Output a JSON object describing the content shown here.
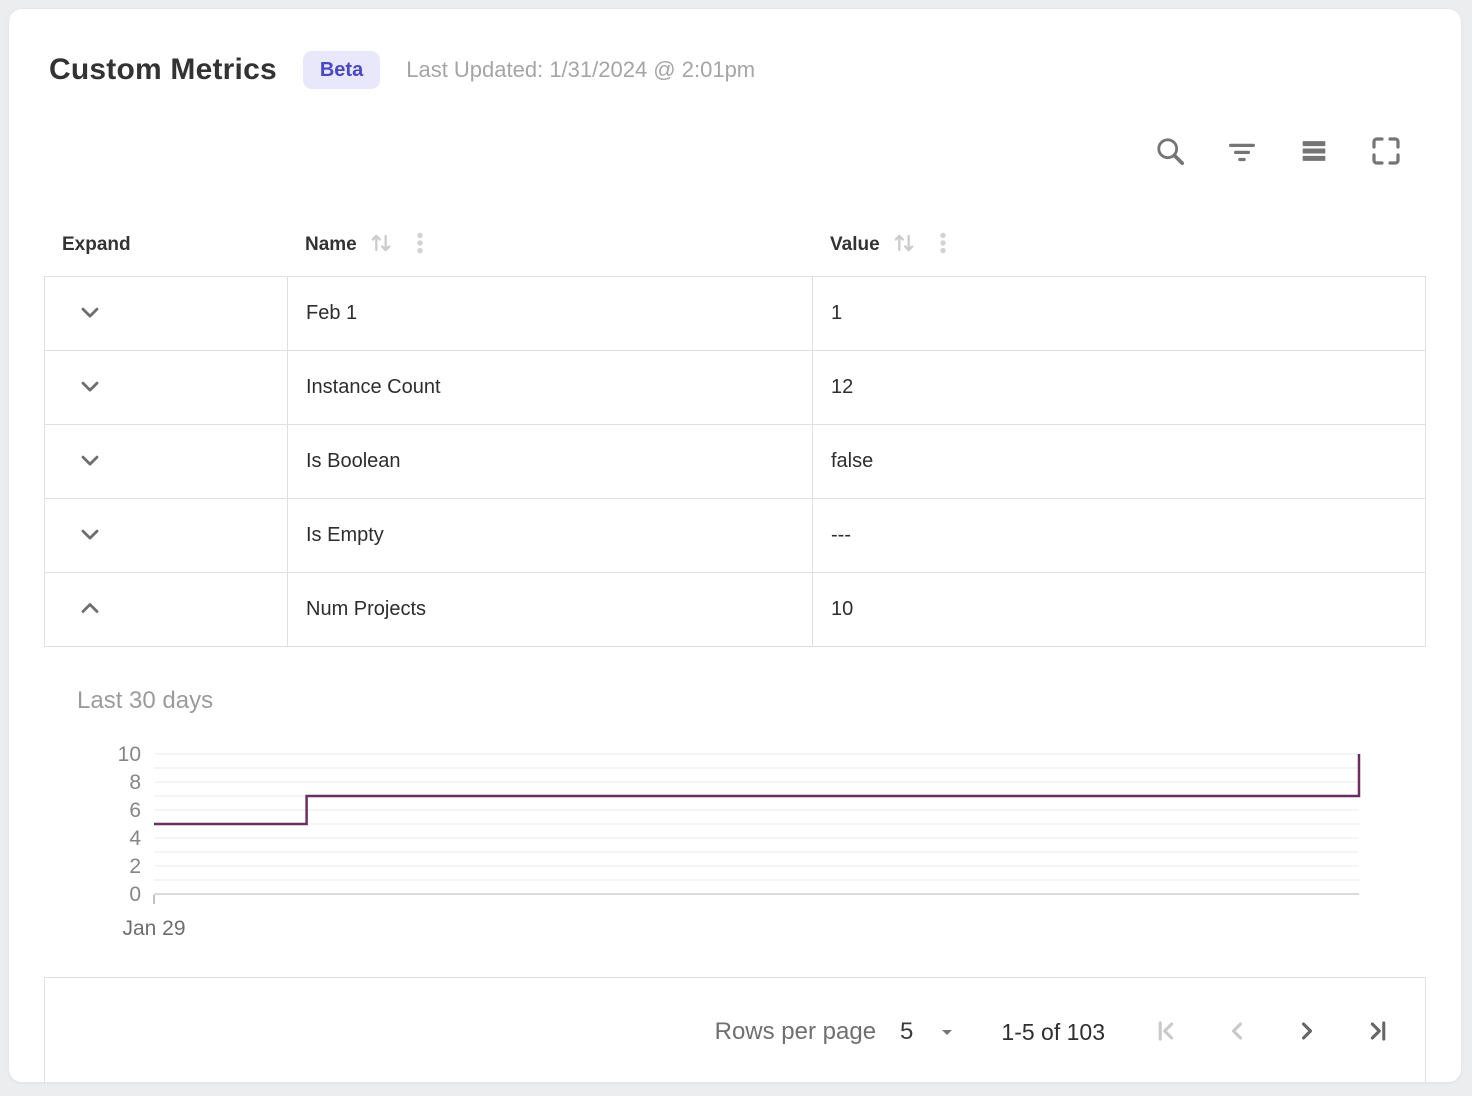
{
  "header": {
    "title": "Custom Metrics",
    "badge_label": "Beta",
    "last_updated": "Last Updated: 1/31/2024 @ 2:01pm",
    "badge_bg": "#e9e8fb",
    "badge_color": "#4947c8"
  },
  "toolbar": {
    "icons": [
      "search",
      "filter",
      "density",
      "fullscreen"
    ]
  },
  "table": {
    "columns": [
      {
        "label": "Expand",
        "sortable": false
      },
      {
        "label": "Name",
        "sortable": true
      },
      {
        "label": "Value",
        "sortable": true
      }
    ],
    "rows": [
      {
        "name": "Feb 1",
        "value": "1",
        "expanded": false
      },
      {
        "name": "Instance Count",
        "value": "12",
        "expanded": false
      },
      {
        "name": "Is Boolean",
        "value": "false",
        "expanded": false
      },
      {
        "name": "Is Empty",
        "value": "---",
        "expanded": false
      },
      {
        "name": "Num Projects",
        "value": "10",
        "expanded": true
      }
    ]
  },
  "detail_panel": {
    "title": "Last 30 days",
    "for_row": "Num Projects"
  },
  "chart_data": {
    "type": "line",
    "subtype": "step",
    "title": "Last 30 days",
    "x_tick_labels": [
      "Jan 29"
    ],
    "xmax": 30,
    "ylim": [
      0,
      10
    ],
    "y_ticks": [
      0,
      2,
      4,
      6,
      8,
      10
    ],
    "grid": "horizontal, every 1 unit",
    "legend": "none",
    "line_color": "#6d2e5f",
    "points": [
      {
        "x": 0,
        "y": 5
      },
      {
        "x": 3.8,
        "y": 5
      },
      {
        "x": 3.8,
        "y": 7
      },
      {
        "x": 30,
        "y": 7
      },
      {
        "x": 30,
        "y": 10
      }
    ]
  },
  "pagination": {
    "rows_per_page_label": "Rows per page",
    "rows_per_page_value": "5",
    "range_label": "1-5 of 103",
    "buttons": [
      {
        "name": "first-page",
        "enabled": false
      },
      {
        "name": "previous-page",
        "enabled": false
      },
      {
        "name": "next-page",
        "enabled": true
      },
      {
        "name": "last-page",
        "enabled": true
      }
    ]
  }
}
